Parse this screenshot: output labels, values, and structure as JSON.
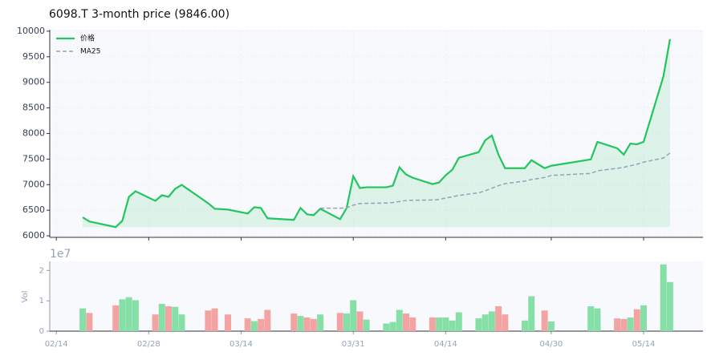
{
  "chart_data": {
    "type": "stock",
    "title": "6098.T  3-month price (9846.00)",
    "x": [
      "02/18",
      "02/19",
      "02/23",
      "02/24",
      "02/25",
      "02/26",
      "03/01",
      "03/02",
      "03/03",
      "03/04",
      "03/05",
      "03/09",
      "03/10",
      "03/12",
      "03/15",
      "03/16",
      "03/17",
      "03/18",
      "03/22",
      "03/23",
      "03/24",
      "03/25",
      "03/26",
      "03/29",
      "03/30",
      "03/31",
      "04/01",
      "04/02",
      "04/05",
      "04/06",
      "04/07",
      "04/08",
      "04/09",
      "04/12",
      "04/13",
      "04/14",
      "04/15",
      "04/16",
      "04/19",
      "04/20",
      "04/21",
      "04/22",
      "04/23",
      "04/26",
      "04/27",
      "04/29",
      "04/30",
      "05/06",
      "05/07",
      "05/10",
      "05/11",
      "05/12",
      "05/13",
      "05/14",
      "05/17",
      "05/18"
    ],
    "series": [
      {
        "name": "价格",
        "color": "#22c55e",
        "values": [
          6360,
          6280,
          6170,
          6295,
          6762,
          6871,
          6684,
          6793,
          6762,
          6918,
          6995,
          6637,
          6529,
          6513,
          6435,
          6560,
          6544,
          6342,
          6311,
          6544,
          6420,
          6404,
          6529,
          6326,
          6544,
          7166,
          6933,
          6949,
          6949,
          6980,
          7338,
          7198,
          7136,
          7011,
          7042,
          7182,
          7291,
          7525,
          7634,
          7867,
          7961,
          7587,
          7322,
          7322,
          7478,
          7322,
          7369,
          7494,
          7836,
          7711,
          7587,
          7804,
          7789,
          7836,
          9113,
          9846
        ]
      },
      {
        "name": "MA25",
        "color": "#94a3b8",
        "values": [
          null,
          null,
          null,
          null,
          null,
          null,
          null,
          null,
          null,
          null,
          null,
          null,
          null,
          null,
          null,
          null,
          null,
          null,
          null,
          null,
          null,
          null,
          6540,
          6540,
          6545,
          6600,
          6630,
          6635,
          6640,
          6650,
          6670,
          6690,
          6695,
          6700,
          6710,
          6740,
          6760,
          6790,
          6840,
          6880,
          6930,
          6980,
          7020,
          7070,
          7100,
          7140,
          7180,
          7220,
          7270,
          7320,
          7340,
          7370,
          7400,
          7440,
          7520,
          7620
        ]
      }
    ],
    "volume": {
      "values": [
        0.75,
        0.6,
        0.85,
        1.05,
        1.12,
        1.02,
        0.55,
        0.9,
        0.82,
        0.8,
        0.55,
        0.68,
        0.75,
        0.55,
        0.42,
        0.33,
        0.4,
        0.7,
        0.58,
        0.5,
        0.45,
        0.4,
        0.55,
        0.6,
        0.58,
        1.02,
        0.65,
        0.38,
        0.25,
        0.3,
        0.7,
        0.58,
        0.45,
        0.45,
        0.45,
        0.45,
        0.35,
        0.62,
        0.42,
        0.55,
        0.65,
        0.82,
        0.55,
        0.35,
        1.15,
        0.68,
        0.32,
        0.82,
        0.75,
        0.42,
        0.4,
        0.45,
        0.72,
        0.85,
        2.2,
        1.62
      ],
      "up_color": "#86dfa6",
      "down_color": "#f4a3a3",
      "ylabel": "Vol",
      "offset_label": "1e7",
      "ylim": [
        0,
        2.3
      ],
      "yticks": [
        0,
        1,
        2
      ]
    },
    "xlim": [
      "02/13",
      "05/23"
    ],
    "xticks": [
      "02/14",
      "02/28",
      "03/14",
      "03/31",
      "04/14",
      "04/30",
      "05/14"
    ],
    "ylim": [
      5970,
      10030
    ],
    "yticks": [
      6000,
      6500,
      7000,
      7500,
      8000,
      8500,
      9000,
      9500,
      10000
    ],
    "grid": true
  }
}
